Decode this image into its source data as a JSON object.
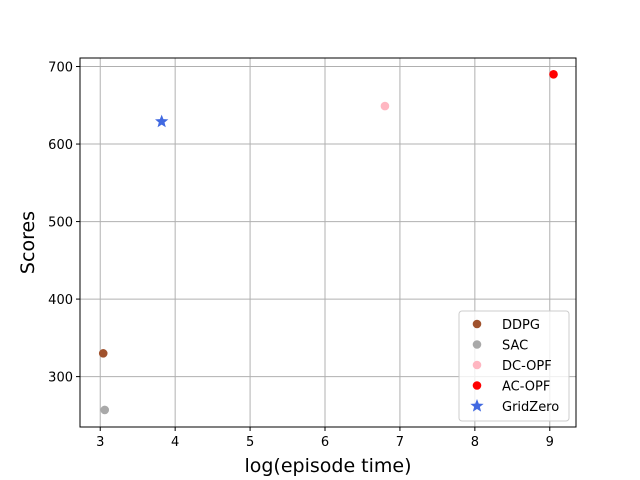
{
  "chart_data": {
    "type": "scatter",
    "xlabel": "log(episode time)",
    "ylabel": "Scores",
    "xlim": [
      2.73,
      9.35
    ],
    "ylim": [
      235,
      711
    ],
    "xticks": [
      3,
      4,
      5,
      6,
      7,
      8,
      9
    ],
    "yticks": [
      300,
      400,
      500,
      600,
      700
    ],
    "grid": true,
    "legend_position": "lower-right",
    "series": [
      {
        "name": "DDPG",
        "marker": "circle",
        "color": "#a0522d",
        "points": [
          {
            "x": 3.04,
            "y": 330
          }
        ]
      },
      {
        "name": "SAC",
        "marker": "circle",
        "color": "#a9a9a9",
        "points": [
          {
            "x": 3.06,
            "y": 257
          }
        ]
      },
      {
        "name": "DC-OPF",
        "marker": "circle",
        "color": "#ffb6c1",
        "points": [
          {
            "x": 6.8,
            "y": 649
          }
        ]
      },
      {
        "name": "AC-OPF",
        "marker": "circle",
        "color": "#ff0000",
        "points": [
          {
            "x": 9.05,
            "y": 690
          }
        ]
      },
      {
        "name": "GridZero",
        "marker": "star",
        "color": "#4169e1",
        "points": [
          {
            "x": 3.82,
            "y": 629
          }
        ]
      }
    ]
  }
}
